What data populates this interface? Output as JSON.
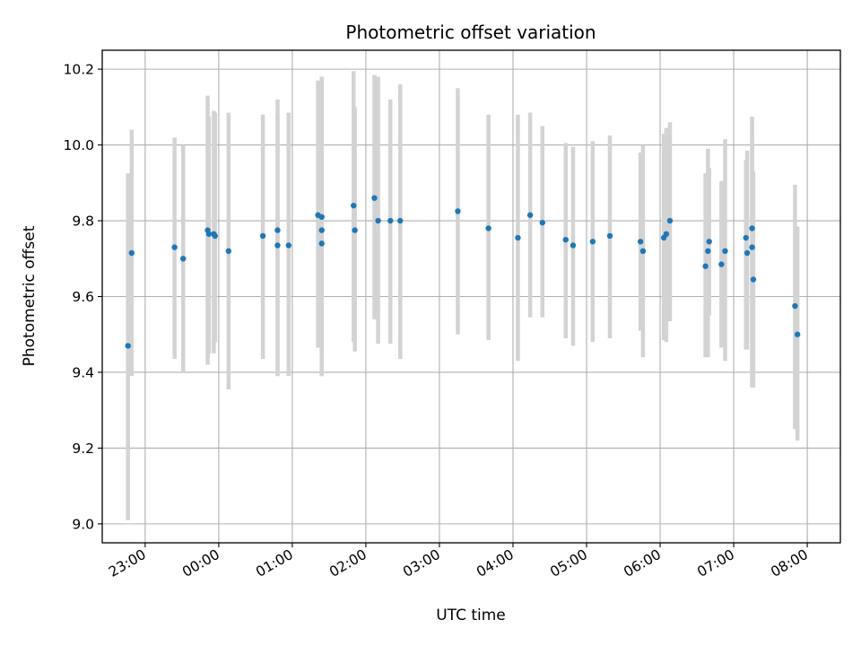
{
  "chart_data": {
    "type": "scatter",
    "title": "Photometric offset variation",
    "xlabel": "UTC time",
    "ylabel": "Photometric offset",
    "grid": true,
    "xlim": [
      "22:25",
      "08:27"
    ],
    "ylim": [
      8.95,
      10.25
    ],
    "x_ticks": [
      "23:00",
      "00:00",
      "01:00",
      "02:00",
      "03:00",
      "04:00",
      "05:00",
      "06:00",
      "07:00",
      "08:00"
    ],
    "y_ticks": [
      "9.0",
      "9.2",
      "9.4",
      "9.6",
      "9.8",
      "10.0",
      "10.2"
    ],
    "colors": {
      "points": "#1f77b4",
      "errorbars": "#d3d3d3",
      "grid": "#b0b0b0"
    },
    "series": [
      {
        "x": [
          "22:46",
          "22:49",
          "23:24",
          "23:31",
          "23:51",
          "23:52",
          "23:56",
          "23:57",
          "00:08",
          "00:36",
          "00:48",
          "00:48",
          "00:57",
          "01:21",
          "01:24",
          "01:24",
          "01:24",
          "01:50",
          "01:51",
          "02:07",
          "02:10",
          "02:20",
          "02:28",
          "03:15",
          "03:40",
          "04:04",
          "04:14",
          "04:24",
          "04:43",
          "04:49",
          "05:05",
          "05:19",
          "05:44",
          "05:46",
          "06:03",
          "06:05",
          "06:08",
          "06:37",
          "06:39",
          "06:40",
          "06:50",
          "06:53",
          "07:10",
          "07:11",
          "07:15",
          "07:15",
          "07:16",
          "07:50",
          "07:52"
        ],
        "y": [
          9.47,
          9.715,
          9.73,
          9.7,
          9.775,
          9.765,
          9.765,
          9.76,
          9.72,
          9.76,
          9.775,
          9.735,
          9.735,
          9.815,
          9.81,
          9.775,
          9.74,
          9.84,
          9.775,
          9.86,
          9.8,
          9.8,
          9.8,
          9.825,
          9.78,
          9.755,
          9.815,
          9.795,
          9.75,
          9.735,
          9.745,
          9.76,
          9.745,
          9.72,
          9.755,
          9.765,
          9.8,
          9.68,
          9.72,
          9.745,
          9.685,
          9.72,
          9.755,
          9.715,
          9.78,
          9.73,
          9.645,
          9.575,
          9.5
        ],
        "err_low": [
          9.01,
          9.39,
          9.435,
          9.4,
          9.42,
          9.45,
          9.45,
          9.48,
          9.355,
          9.435,
          9.39,
          9.39,
          9.39,
          9.465,
          9.39,
          9.39,
          9.39,
          9.48,
          9.455,
          9.54,
          9.475,
          9.475,
          9.435,
          9.5,
          9.485,
          9.43,
          9.545,
          9.545,
          9.49,
          9.47,
          9.48,
          9.49,
          9.51,
          9.44,
          9.485,
          9.48,
          9.535,
          9.44,
          9.44,
          9.55,
          9.465,
          9.43,
          9.46,
          9.46,
          9.48,
          9.36,
          9.36,
          9.25,
          9.22
        ],
        "err_high": [
          9.925,
          10.04,
          10.02,
          10.0,
          10.13,
          10.075,
          10.09,
          10.085,
          10.085,
          10.08,
          10.12,
          10.08,
          10.085,
          10.17,
          10.18,
          10.12,
          10.1,
          10.195,
          10.1,
          10.185,
          10.18,
          10.12,
          10.16,
          10.15,
          10.08,
          10.08,
          10.085,
          10.05,
          10.005,
          9.995,
          10.01,
          10.025,
          9.98,
          10.0,
          10.03,
          10.045,
          10.06,
          9.925,
          9.99,
          9.94,
          9.905,
          10.015,
          9.96,
          9.985,
          10.075,
          10.025,
          9.93,
          9.895,
          9.785
        ]
      }
    ]
  }
}
